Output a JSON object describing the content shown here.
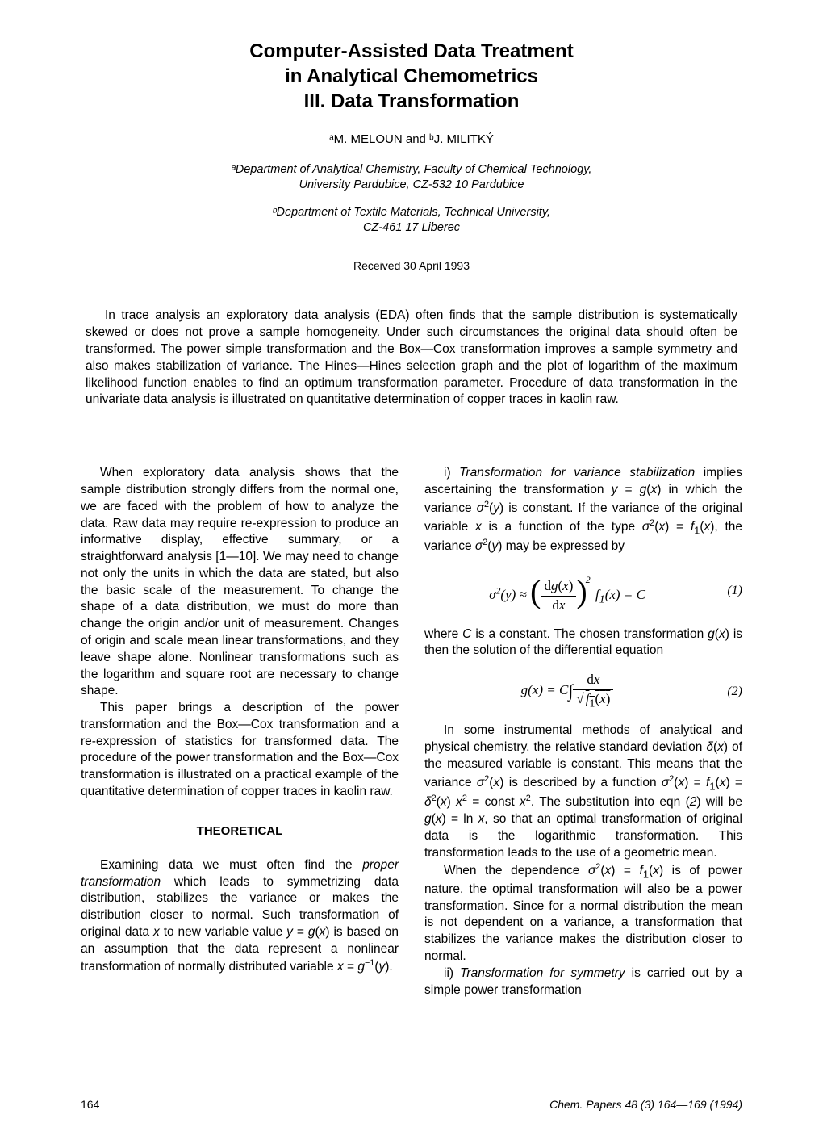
{
  "title_line1": "Computer-Assisted Data Treatment",
  "title_line2": "in Analytical Chemometrics",
  "title_line3": "III. Data Transformation",
  "authors_html": "ᵃM. MELOUN and ᵇJ. MILITKÝ",
  "affil_a_line1": "ᵃDepartment of Analytical Chemistry, Faculty of Chemical Technology,",
  "affil_a_line2": "University Pardubice, CZ-532 10 Pardubice",
  "affil_b_line1": "ᵇDepartment of Textile Materials, Technical University,",
  "affil_b_line2": "CZ-461 17 Liberec",
  "received": "Received 30 April 1993",
  "abstract": "In trace analysis an exploratory data analysis (EDA) often finds that the sample distribution is systematically skewed or does not prove a sample homogeneity. Under such circumstances the original data should often be transformed. The power simple transformation and the Box—Cox transformation improves a sample symmetry and also makes stabilization of variance. The Hines—Hines selection graph and the plot of logarithm of the maximum likelihood function enables to find an optimum transformation parameter. Procedure of data transformation in the univariate data analysis is illustrated on quantitative determination of copper traces in kaolin raw.",
  "left": {
    "p1": "When exploratory data analysis shows that the sample distribution strongly differs from the normal one, we are faced with the problem of how to analyze the data. Raw data may require re-expression to produce an informative display, effective summary, or a straightforward analysis [1—10]. We may need to change not only the units in which the data are stated, but also the basic scale of the measurement. To change the shape of a data distribution, we must do more than change the origin and/or unit of measurement. Changes of origin and scale mean linear transformations, and they leave shape alone. Nonlinear transformations such as the logarithm and square root are necessary to change shape.",
    "p2": "This paper brings a description of the power transformation and the Box—Cox transformation and a re-expression of statistics for transformed data. The procedure of the power transformation and the Box—Cox transformation is illustrated on a practical example of the quantitative determination of copper traces in kaolin raw.",
    "theo_head": "THEORETICAL",
    "p3a": "Examining data we must often find the ",
    "p3b": "proper transformation",
    "p3c": " which leads to symmetrizing data distribution, stabilizes the variance or makes the distribution closer to normal. Such transformation of original data ",
    "p3d": " to new variable value ",
    "p3e": " is based on an assumption that the data represent a nonlinear transformation of normally distributed variable "
  },
  "right": {
    "p1a": "i) ",
    "p1b": "Transformation for variance stabilization",
    "p1c": " implies ascertaining the transformation ",
    "p1d": " in which the variance ",
    "p1e": " is constant. If the variance of the original variable ",
    "p1f": " is a function of the type ",
    "p1g": ", the variance ",
    "p1h": " may be expressed by",
    "eq1_num": "(1)",
    "p2a": "where ",
    "p2b": " is a constant. The chosen transformation ",
    "p2c": " is then the solution of the differential equation",
    "eq2_num": "(2)",
    "p3a": "In some instrumental methods of analytical and physical chemistry, the relative standard deviation ",
    "p3b": " of the measured variable is constant. This means that the variance ",
    "p3c": " is described by a function ",
    "p3d": ". The substitution into eqn ",
    "p3e": " will be ",
    "p3f": ", so that an optimal transformation of original data is the logarithmic transformation. This transformation leads to the use of a geometric mean.",
    "p4a": "When the dependence ",
    "p4b": " is of power nature, the optimal transformation will also be a power transformation. Since for a normal distribution the mean is not dependent on a variance, a transformation that stabilizes the variance makes the distribution closer to normal.",
    "p5a": "ii) ",
    "p5b": "Transformation for symmetry",
    "p5c": " is carried out by a simple power transformation"
  },
  "footer": {
    "page": "164",
    "cite": "Chem. Papers 48 (3) 164—169 (1994)"
  }
}
